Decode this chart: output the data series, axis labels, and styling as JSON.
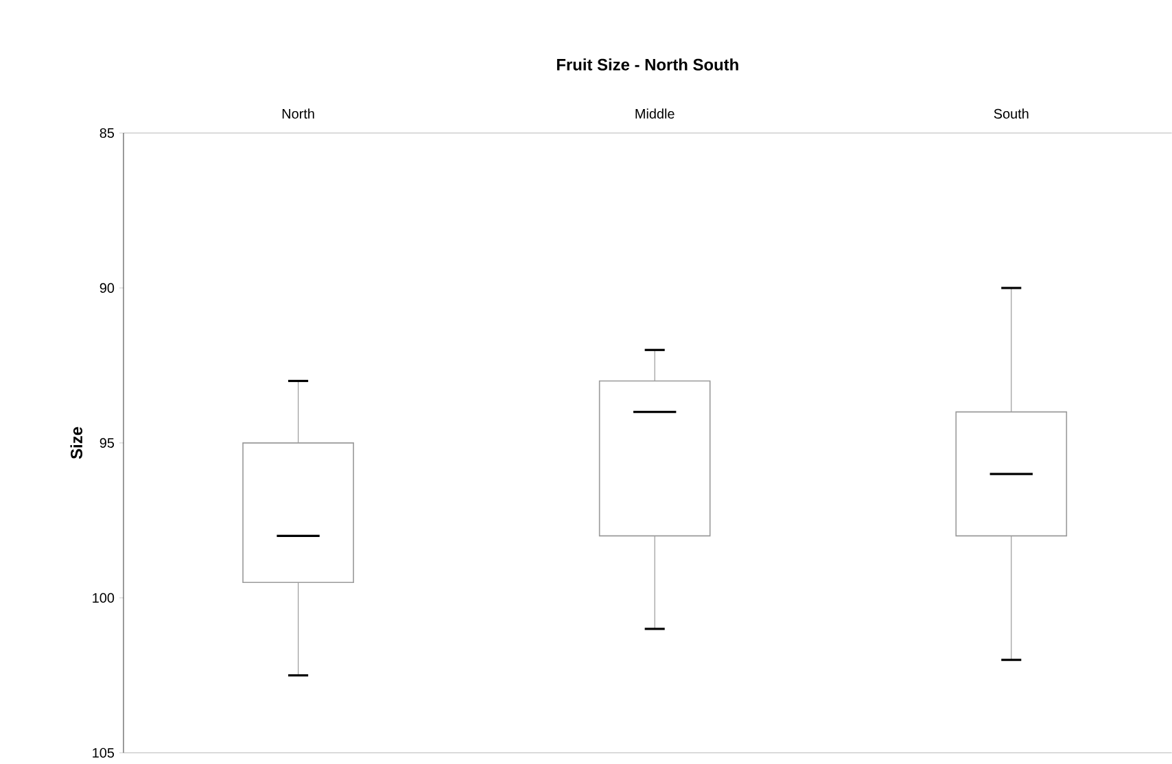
{
  "chart_data": {
    "type": "box",
    "title": "Fruit Size - North South",
    "ylabel": "Size",
    "categories": [
      "North",
      "Middle",
      "South"
    ],
    "ylim": [
      105,
      85
    ],
    "yticks": [
      85,
      90,
      95,
      100,
      105
    ],
    "series": [
      {
        "color": "#999999",
        "boxes": [
          {
            "low": 102.5,
            "q1": 99.5,
            "median": 98,
            "q3": 95,
            "high": 93
          },
          {
            "low": 101,
            "q1": 98,
            "median": 94,
            "q3": 93,
            "high": 92
          },
          {
            "low": 102,
            "q1": 98,
            "median": 96,
            "q3": 94,
            "high": 90
          }
        ]
      }
    ]
  }
}
